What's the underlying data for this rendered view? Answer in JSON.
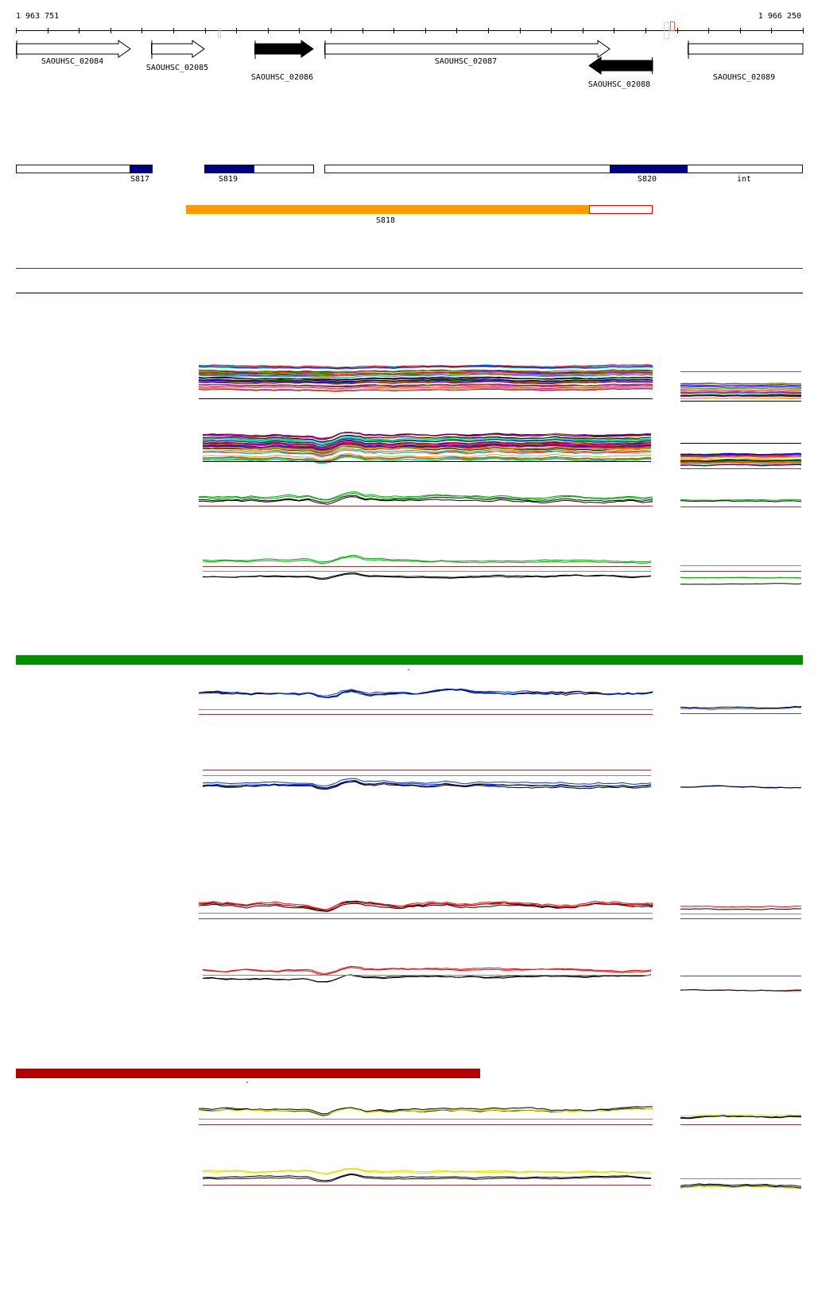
{
  "ruler": {
    "start_label": "1 963 751",
    "end_label": "1 966 250"
  },
  "genes": [
    {
      "name": "SAOUHSC_02084",
      "strand": "+",
      "filled": false
    },
    {
      "name": "SAOUHSC_02085",
      "strand": "+",
      "filled": false
    },
    {
      "name": "SAOUHSC_02086",
      "strand": "+",
      "filled": true
    },
    {
      "name": "SAOUHSC_02087",
      "strand": "+",
      "filled": false
    },
    {
      "name": "SAOUHSC_02088",
      "strand": "-",
      "filled": true
    },
    {
      "name": "SAOUHSC_02089",
      "strand": "+",
      "filled": false
    }
  ],
  "segments": {
    "s817": "S817",
    "s819": "S819",
    "s820": "S820",
    "int": "int",
    "s818": "S818",
    "blue": "#0000cc",
    "dark_blue": "#000080",
    "orange": "#ff9900",
    "red": "#ff0000"
  },
  "condition_bars": [
    {
      "color": "#008f00",
      "mark": "-"
    },
    {
      "color": "#b30000",
      "mark": "-"
    }
  ],
  "track_colors": {
    "multi": [
      "#cc00cc",
      "#00aa00",
      "#ff0000",
      "#996600",
      "#0000ff",
      "#000000",
      "#ff9900",
      "#00cccc",
      "#808000",
      "#660066"
    ],
    "green": "#00aa00",
    "blue": "#0033ff",
    "red": "#ff0000",
    "yellow": "#e0e000",
    "baseline": "#993333"
  }
}
